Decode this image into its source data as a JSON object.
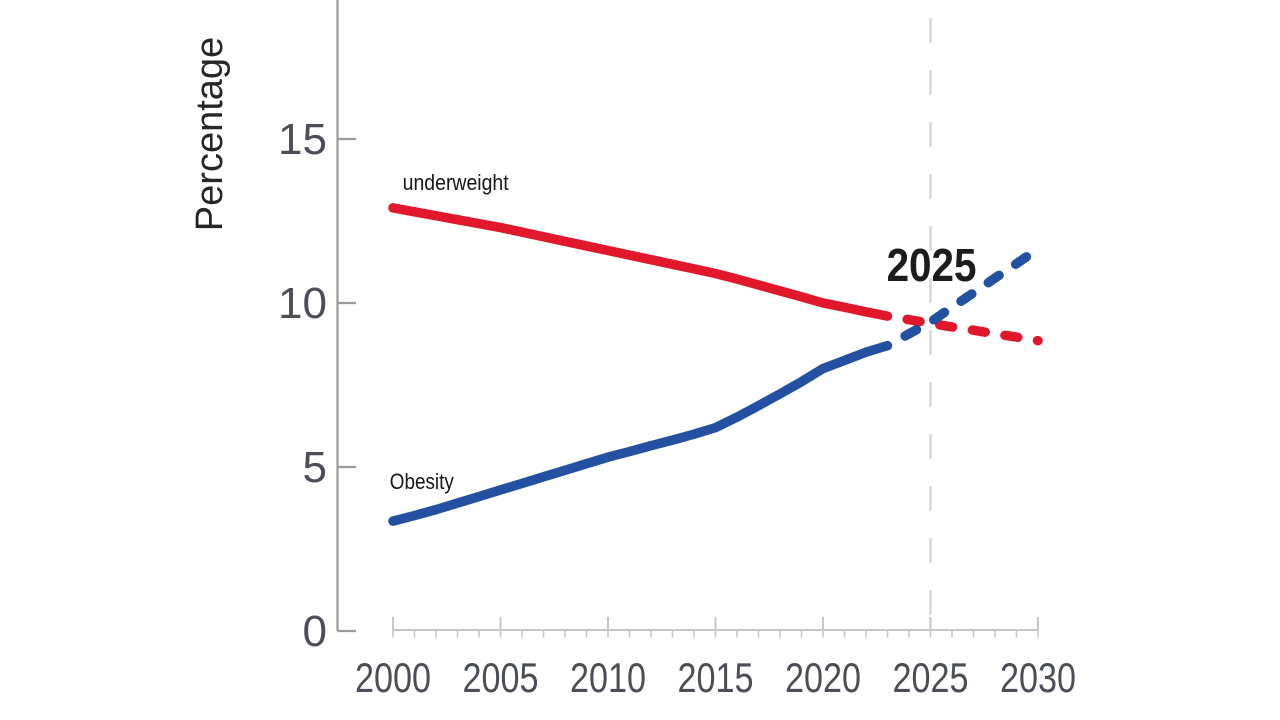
{
  "chart_data": {
    "type": "line",
    "title": "",
    "ylabel": "Percentage",
    "xlabel": "",
    "xlim": [
      2000,
      2030
    ],
    "ylim": [
      0,
      19.2
    ],
    "yticks": [
      0,
      5,
      10,
      15
    ],
    "xticks": [
      2000,
      2005,
      2010,
      2015,
      2020,
      2025,
      2030
    ],
    "minor_xtick_step": 1,
    "grid": false,
    "legend_position": "inline-labels",
    "axis_color_y": "#9a9a9a",
    "axis_color_x": "#c6c6c6",
    "tick_label_color": "#4b4e57",
    "vline": {
      "x": 2025,
      "style": "dashed",
      "color": "#d6d6d6"
    },
    "annotation": {
      "text": "2025",
      "x": 2025.05,
      "y": 10.67,
      "bold": true,
      "color": "#1c1c1c"
    },
    "series": [
      {
        "name": "underweight",
        "label": "underweight",
        "color": "#e1182c",
        "label_x": 2000.45,
        "label_y": 13.45,
        "start_year": 2000,
        "observed": [
          12.9,
          12.78,
          12.66,
          12.54,
          12.42,
          12.3,
          12.16,
          12.02,
          11.88,
          11.74,
          11.6,
          11.46,
          11.32,
          11.18,
          11.04,
          10.9,
          10.73,
          10.55,
          10.37,
          10.19,
          10.0,
          9.87,
          9.73,
          9.6
        ],
        "projected_start_year": 2023,
        "projected": [
          9.6,
          9.49,
          9.38,
          9.27,
          9.17,
          9.06,
          8.96,
          8.85
        ]
      },
      {
        "name": "obesity",
        "label": "Obesity",
        "color": "#2350a0",
        "label_x": 1999.85,
        "label_y": 4.33,
        "start_year": 2000,
        "observed": [
          3.35,
          3.52,
          3.7,
          3.9,
          4.1,
          4.3,
          4.5,
          4.7,
          4.9,
          5.1,
          5.3,
          5.47,
          5.65,
          5.82,
          6.0,
          6.2,
          6.52,
          6.87,
          7.23,
          7.6,
          8.0,
          8.25,
          8.5,
          8.7
        ],
        "projected_start_year": 2023,
        "projected": [
          8.7,
          9.06,
          9.42,
          9.87,
          10.31,
          10.76,
          11.2,
          11.65
        ]
      }
    ]
  }
}
